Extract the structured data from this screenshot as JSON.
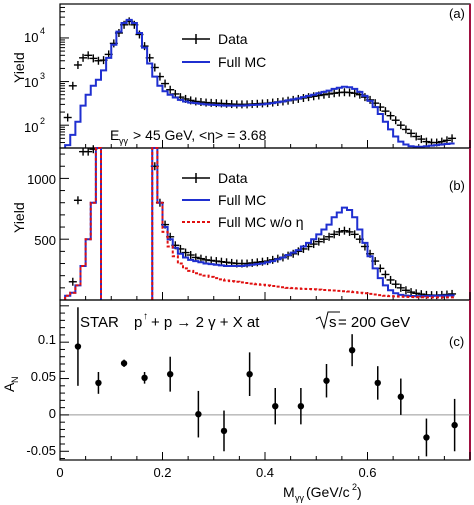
{
  "colors": {
    "data": "#000000",
    "full_mc": "#1f2fd0",
    "full_mc_wo_eta": "#e01010",
    "frame_right": "#a01040",
    "zero_line": "#999999"
  },
  "x_axis": {
    "label_main": "M",
    "label_sub": "γγ",
    "label_unit": " (GeV/c",
    "label_sup": "2",
    "label_close": ")",
    "range": [
      0,
      0.8
    ],
    "ticks": [
      0,
      0.2,
      0.4,
      0.6
    ],
    "tick_labels": [
      "0",
      "0.2",
      "0.4",
      "0.6"
    ]
  },
  "chart_data": [
    {
      "type": "line",
      "panel_label": "(a)",
      "ylabel": "Yield",
      "yscale": "log",
      "ylim": [
        30,
        60000
      ],
      "y_ticks": [
        100,
        1000,
        10000
      ],
      "y_tick_labels": [
        {
          "base": "10",
          "exp": "2"
        },
        {
          "base": "10",
          "exp": "3"
        },
        {
          "base": "10",
          "exp": "4"
        }
      ],
      "annotation": {
        "main": "E",
        "sub": "γγ",
        "rest": " > 45 GeV, <η> = 3.68"
      },
      "legend": [
        {
          "key": "data",
          "label": "Data"
        },
        {
          "key": "full_mc",
          "label": "Full MC"
        }
      ],
      "series": [
        {
          "name": "Data",
          "key": "data",
          "x": [
            0.015,
            0.025,
            0.035,
            0.045,
            0.055,
            0.065,
            0.075,
            0.085,
            0.095,
            0.105,
            0.115,
            0.125,
            0.135,
            0.145,
            0.155,
            0.165,
            0.175,
            0.185,
            0.195,
            0.205,
            0.215,
            0.225,
            0.235,
            0.245,
            0.255,
            0.265,
            0.275,
            0.285,
            0.295,
            0.305,
            0.315,
            0.325,
            0.335,
            0.345,
            0.355,
            0.365,
            0.375,
            0.385,
            0.395,
            0.405,
            0.415,
            0.425,
            0.435,
            0.445,
            0.455,
            0.465,
            0.475,
            0.485,
            0.495,
            0.505,
            0.515,
            0.525,
            0.535,
            0.545,
            0.555,
            0.565,
            0.575,
            0.585,
            0.595,
            0.605,
            0.615,
            0.625,
            0.635,
            0.645,
            0.655,
            0.665,
            0.675,
            0.685,
            0.695,
            0.705,
            0.715,
            0.725,
            0.735,
            0.745,
            0.755,
            0.765
          ],
          "y": [
            150,
            800,
            2400,
            3500,
            4000,
            3400,
            3000,
            3100,
            4200,
            7500,
            13000,
            20000,
            24000,
            20000,
            12000,
            6500,
            3500,
            2100,
            1300,
            900,
            650,
            520,
            440,
            400,
            370,
            350,
            340,
            330,
            325,
            320,
            315,
            310,
            305,
            300,
            300,
            300,
            305,
            310,
            315,
            320,
            330,
            340,
            350,
            365,
            380,
            400,
            420,
            440,
            460,
            480,
            500,
            520,
            540,
            560,
            570,
            560,
            540,
            500,
            440,
            380,
            320,
            260,
            210,
            165,
            130,
            100,
            80,
            65,
            55,
            48,
            42,
            40,
            40,
            42,
            45,
            50
          ]
        },
        {
          "name": "Full MC",
          "key": "full_mc",
          "x": [
            0.015,
            0.025,
            0.035,
            0.045,
            0.055,
            0.065,
            0.075,
            0.085,
            0.095,
            0.105,
            0.115,
            0.125,
            0.135,
            0.145,
            0.155,
            0.165,
            0.175,
            0.185,
            0.195,
            0.205,
            0.215,
            0.225,
            0.235,
            0.245,
            0.255,
            0.265,
            0.275,
            0.285,
            0.295,
            0.305,
            0.315,
            0.325,
            0.335,
            0.345,
            0.355,
            0.365,
            0.375,
            0.385,
            0.395,
            0.405,
            0.415,
            0.425,
            0.435,
            0.445,
            0.455,
            0.465,
            0.475,
            0.485,
            0.495,
            0.505,
            0.515,
            0.525,
            0.535,
            0.545,
            0.555,
            0.565,
            0.575,
            0.585,
            0.595,
            0.605,
            0.615,
            0.625,
            0.635,
            0.645,
            0.655,
            0.665,
            0.675,
            0.685,
            0.695,
            0.705,
            0.715,
            0.725,
            0.735,
            0.745,
            0.755,
            0.765
          ],
          "y": [
            35,
            60,
            120,
            280,
            500,
            800,
            1100,
            1800,
            3500,
            7000,
            14000,
            22000,
            26000,
            22000,
            13000,
            6000,
            2600,
            1300,
            800,
            600,
            500,
            430,
            380,
            350,
            330,
            320,
            310,
            300,
            295,
            290,
            285,
            280,
            280,
            280,
            280,
            285,
            290,
            295,
            300,
            310,
            320,
            335,
            350,
            370,
            390,
            410,
            440,
            470,
            500,
            540,
            580,
            620,
            680,
            720,
            760,
            740,
            680,
            580,
            470,
            360,
            260,
            180,
            120,
            80,
            55,
            42,
            36,
            33,
            32,
            32,
            33,
            34,
            35,
            36,
            37,
            38
          ]
        }
      ]
    },
    {
      "type": "line",
      "panel_label": "(b)",
      "ylabel": "Yield",
      "yscale": "linear",
      "ylim": [
        0,
        1250
      ],
      "y_ticks": [
        500,
        1000
      ],
      "y_tick_labels": [
        "500",
        "1000"
      ],
      "legend": [
        {
          "key": "data",
          "label": "Data"
        },
        {
          "key": "full_mc",
          "label": "Full MC"
        },
        {
          "key": "full_mc_wo_eta",
          "label": "Full MC w/o η"
        }
      ],
      "series": [
        {
          "name": "Data",
          "key": "data",
          "x": [
            0.025,
            0.035,
            0.045,
            0.055,
            0.065,
            0.185,
            0.195,
            0.205,
            0.215,
            0.225,
            0.235,
            0.245,
            0.255,
            0.265,
            0.275,
            0.285,
            0.295,
            0.305,
            0.315,
            0.325,
            0.335,
            0.345,
            0.355,
            0.365,
            0.375,
            0.385,
            0.395,
            0.405,
            0.415,
            0.425,
            0.435,
            0.445,
            0.455,
            0.465,
            0.475,
            0.485,
            0.495,
            0.505,
            0.515,
            0.525,
            0.535,
            0.545,
            0.555,
            0.565,
            0.575,
            0.585,
            0.595,
            0.605,
            0.615,
            0.625,
            0.635,
            0.645,
            0.655,
            0.665,
            0.675,
            0.685,
            0.695,
            0.705,
            0.715,
            0.725,
            0.735,
            0.745,
            0.755,
            0.765
          ],
          "y": [
            150,
            820,
            1220,
            1220,
            1240,
            1100,
            800,
            620,
            520,
            450,
            420,
            390,
            370,
            350,
            340,
            330,
            325,
            320,
            315,
            310,
            305,
            300,
            300,
            300,
            305,
            310,
            315,
            320,
            330,
            340,
            350,
            365,
            380,
            400,
            420,
            440,
            460,
            480,
            500,
            520,
            540,
            560,
            570,
            560,
            540,
            500,
            440,
            380,
            320,
            260,
            210,
            165,
            130,
            100,
            80,
            65,
            55,
            48,
            42,
            40,
            40,
            42,
            45,
            50
          ]
        },
        {
          "name": "Full MC",
          "key": "full_mc",
          "x": [
            0.015,
            0.025,
            0.035,
            0.045,
            0.055,
            0.065,
            0.075,
            0.185,
            0.195,
            0.205,
            0.215,
            0.225,
            0.235,
            0.245,
            0.255,
            0.265,
            0.275,
            0.285,
            0.295,
            0.305,
            0.315,
            0.325,
            0.335,
            0.345,
            0.355,
            0.365,
            0.375,
            0.385,
            0.395,
            0.405,
            0.415,
            0.425,
            0.435,
            0.445,
            0.455,
            0.465,
            0.475,
            0.485,
            0.495,
            0.505,
            0.515,
            0.525,
            0.535,
            0.545,
            0.555,
            0.565,
            0.575,
            0.585,
            0.595,
            0.605,
            0.615,
            0.625,
            0.635,
            0.645,
            0.655,
            0.665,
            0.675,
            0.685,
            0.695,
            0.705,
            0.715,
            0.725,
            0.735,
            0.745,
            0.755,
            0.765
          ],
          "y": [
            35,
            60,
            120,
            280,
            500,
            800,
            1250,
            1300,
            800,
            600,
            500,
            430,
            380,
            350,
            330,
            320,
            310,
            300,
            295,
            290,
            285,
            280,
            280,
            280,
            280,
            285,
            290,
            295,
            300,
            310,
            320,
            335,
            350,
            370,
            390,
            410,
            440,
            470,
            500,
            540,
            580,
            620,
            680,
            720,
            760,
            740,
            680,
            580,
            470,
            360,
            260,
            180,
            120,
            80,
            55,
            42,
            36,
            33,
            32,
            32,
            33,
            34,
            35,
            36,
            37,
            38
          ]
        },
        {
          "name": "Full MC w/o η",
          "key": "full_mc_wo_eta",
          "x": [
            0.015,
            0.025,
            0.035,
            0.045,
            0.055,
            0.065,
            0.075,
            0.185,
            0.195,
            0.205,
            0.215,
            0.225,
            0.235,
            0.245,
            0.255,
            0.265,
            0.275,
            0.285,
            0.295,
            0.305,
            0.315,
            0.325,
            0.335,
            0.345,
            0.355,
            0.365,
            0.375,
            0.385,
            0.395,
            0.405,
            0.415,
            0.425,
            0.435,
            0.445,
            0.455,
            0.465,
            0.475,
            0.485,
            0.495,
            0.505,
            0.515,
            0.525,
            0.535,
            0.545,
            0.555,
            0.565,
            0.575,
            0.585,
            0.595,
            0.605,
            0.615,
            0.625,
            0.635,
            0.645,
            0.655,
            0.665,
            0.675,
            0.685,
            0.695,
            0.705,
            0.715,
            0.725,
            0.735,
            0.745,
            0.755,
            0.765
          ],
          "y": [
            35,
            60,
            120,
            280,
            500,
            800,
            1250,
            1300,
            800,
            560,
            440,
            360,
            300,
            260,
            240,
            220,
            210,
            200,
            190,
            180,
            170,
            160,
            155,
            150,
            145,
            140,
            135,
            130,
            125,
            120,
            115,
            110,
            105,
            100,
            98,
            95,
            92,
            90,
            88,
            85,
            82,
            80,
            78,
            75,
            72,
            70,
            65,
            60,
            55,
            50,
            45,
            40,
            35,
            32,
            30,
            28,
            26,
            25,
            24,
            23,
            22,
            22,
            22,
            22,
            22,
            22
          ]
        }
      ]
    },
    {
      "type": "scatter",
      "panel_label": "(c)",
      "ylabel_main": "A",
      "ylabel_sub": "N",
      "yscale": "linear",
      "ylim": [
        -0.062,
        0.158
      ],
      "y_ticks": [
        -0.05,
        0,
        0.05,
        0.1
      ],
      "y_tick_labels": [
        "-0.05",
        "0",
        "0.05",
        "0.1"
      ],
      "title_parts": {
        "star": "STAR",
        "p": "p",
        "arrow": "↑",
        "reaction": " + p → 2 γ + X at ",
        "s": "s",
        "energy": " = 200 GeV"
      },
      "series": [
        {
          "name": "",
          "key": "data",
          "x": [
            0.035,
            0.075,
            0.125,
            0.165,
            0.215,
            0.27,
            0.32,
            0.37,
            0.42,
            0.47,
            0.52,
            0.57,
            0.62,
            0.665,
            0.715,
            0.77
          ],
          "y": [
            0.094,
            0.044,
            0.071,
            0.051,
            0.056,
            0.001,
            -0.022,
            0.056,
            0.012,
            0.012,
            0.047,
            0.089,
            0.044,
            0.025,
            -0.031,
            -0.014
          ],
          "err": [
            0.054,
            0.015,
            0.005,
            0.008,
            0.024,
            0.032,
            0.028,
            0.03,
            0.025,
            0.025,
            0.023,
            0.022,
            0.023,
            0.025,
            0.026,
            0.036
          ]
        }
      ]
    }
  ]
}
